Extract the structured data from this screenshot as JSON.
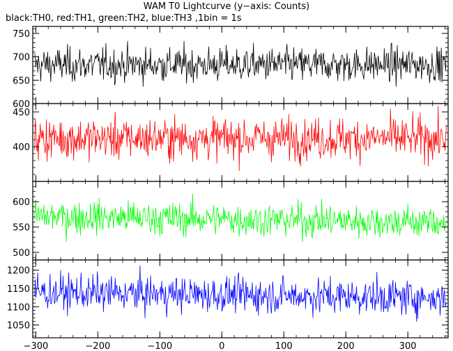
{
  "title": "WAM T0 Lightcurve (y−axis: Counts)",
  "subtitle": "black:TH0, red:TH1, green:TH2, blue:TH3 ,1bin = 1s",
  "chart_data": {
    "type": "line",
    "xlim": [
      -305,
      365
    ],
    "x_ticks": [
      -300,
      -200,
      -100,
      0,
      100,
      200,
      300
    ],
    "x_tick_labels": [
      "−300",
      "−200",
      "−100",
      "0",
      "100",
      "200",
      "300"
    ],
    "x_bin": 1,
    "grid": false,
    "panels": [
      {
        "name": "TH0",
        "color": "#000000",
        "ylim": [
          600,
          765
        ],
        "y_ticks": [
          600,
          650,
          700,
          750
        ],
        "y_tick_labels": [
          "600",
          "650",
          "700",
          "750"
        ],
        "mean": 683,
        "spread": 26,
        "trend": 0
      },
      {
        "name": "TH1",
        "color": "#ff0000",
        "ylim": [
          350,
          462
        ],
        "y_ticks": [
          400,
          450
        ],
        "y_tick_labels": [
          "400",
          "450"
        ],
        "mean": 412,
        "spread": 21,
        "trend": 0
      },
      {
        "name": "TH2",
        "color": "#00ff00",
        "ylim": [
          485,
          640
        ],
        "y_ticks": [
          500,
          550,
          600
        ],
        "y_tick_labels": [
          "500",
          "550",
          "600"
        ],
        "mean": 565,
        "spread": 23,
        "trend": -12
      },
      {
        "name": "TH3",
        "color": "#0000ff",
        "ylim": [
          1015,
          1228
        ],
        "y_ticks": [
          1050,
          1100,
          1150,
          1200
        ],
        "y_tick_labels": [
          "1050",
          "1100",
          "1150",
          "1200"
        ],
        "mean": 1132,
        "spread": 34,
        "trend": -15
      }
    ]
  }
}
